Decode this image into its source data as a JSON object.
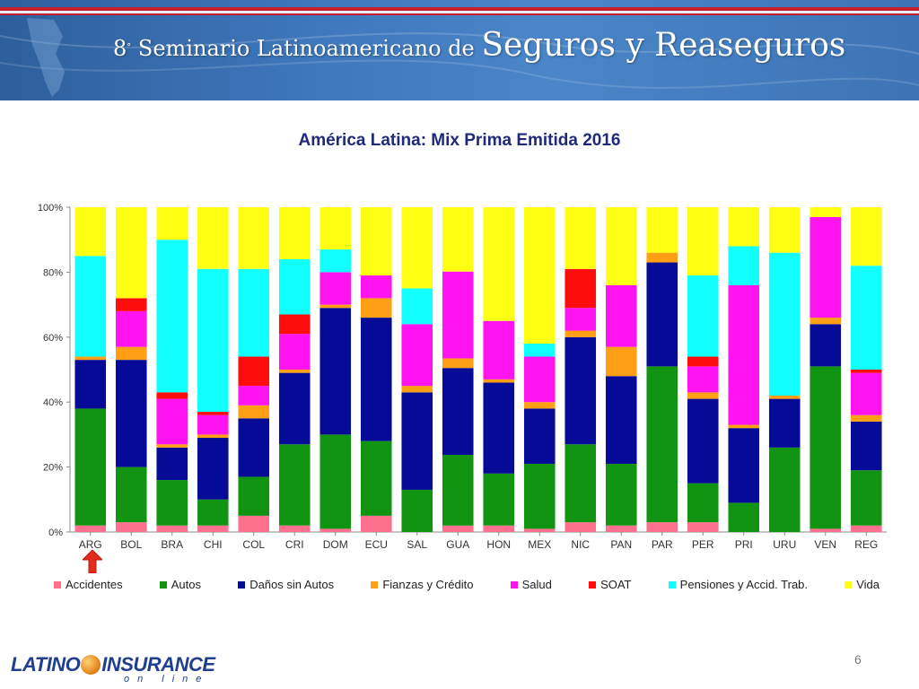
{
  "header": {
    "ordinal": "8",
    "ordinal_suffix": "°",
    "title_small": " Seminario Latinoamericano de ",
    "title_large": "Seguros y Reaseguros"
  },
  "chart_data": {
    "type": "bar",
    "stacked": true,
    "percent": true,
    "title": "América Latina: Mix Prima Emitida 2016",
    "xlabel": "",
    "ylabel": "",
    "ylim": [
      0,
      100
    ],
    "yticks": [
      "0%",
      "20%",
      "40%",
      "60%",
      "80%",
      "100%"
    ],
    "grid": false,
    "legend_position": "bottom",
    "categories": [
      "ARG",
      "BOL",
      "BRA",
      "CHI",
      "COL",
      "CRI",
      "DOM",
      "ECU",
      "SAL",
      "GUA",
      "HON",
      "MEX",
      "NIC",
      "PAN",
      "PAR",
      "PER",
      "PRI",
      "URU",
      "VEN",
      "REG"
    ],
    "series": [
      {
        "name": "Accidentes",
        "color": "#ff6f8e",
        "values": [
          2,
          3,
          2,
          2,
          5,
          2,
          1,
          5,
          0,
          2,
          2,
          1,
          3,
          2,
          3,
          3,
          0,
          0,
          1,
          2
        ]
      },
      {
        "name": "Autos",
        "color": "#119411",
        "values": [
          36,
          17,
          14,
          8,
          12,
          25,
          29,
          23,
          13,
          22,
          16,
          20,
          24,
          19,
          48,
          12,
          9,
          26,
          50,
          17
        ]
      },
      {
        "name": "Daños sin Autos",
        "color": "#050b96",
        "values": [
          15,
          33,
          10,
          19,
          18,
          22,
          39,
          38,
          30,
          27,
          28,
          17,
          33,
          27,
          32,
          26,
          23,
          15,
          13,
          15
        ]
      },
      {
        "name": "Fianzas y Crédito",
        "color": "#ff9f13",
        "values": [
          1,
          4,
          1,
          1,
          4,
          1,
          1,
          6,
          2,
          3,
          1,
          2,
          2,
          9,
          3,
          2,
          1,
          1,
          2,
          2
        ]
      },
      {
        "name": "Salud",
        "color": "#ff14ef",
        "values": [
          0,
          11,
          14,
          6,
          6,
          11,
          10,
          7,
          19,
          27,
          18,
          14,
          7,
          19,
          0,
          8,
          43,
          0,
          31,
          13
        ]
      },
      {
        "name": "SOAT",
        "color": "#ff0c0c",
        "values": [
          0,
          4,
          2,
          1,
          9,
          6,
          0,
          0,
          0,
          0,
          0,
          0,
          12,
          0,
          0,
          3,
          0,
          0,
          0,
          1
        ]
      },
      {
        "name": "Pensiones y Accid. Trab.",
        "color": "#11ffff",
        "values": [
          31,
          0,
          47,
          44,
          27,
          17,
          7,
          0,
          11,
          0,
          0,
          4,
          0,
          0,
          0,
          25,
          12,
          44,
          0,
          32
        ]
      },
      {
        "name": "Vida",
        "color": "#ffff14",
        "values": [
          15,
          28,
          10,
          19,
          19,
          16,
          13,
          21,
          25,
          20,
          35,
          42,
          19,
          24,
          14,
          21,
          12,
          14,
          3,
          18
        ]
      }
    ]
  },
  "highlight_marker": "red-up-arrow-under-ARG",
  "footer": {
    "logo_left": "LATINO",
    "logo_right": "INSURANCE",
    "logo_sub": "on line",
    "page_number": "6"
  }
}
